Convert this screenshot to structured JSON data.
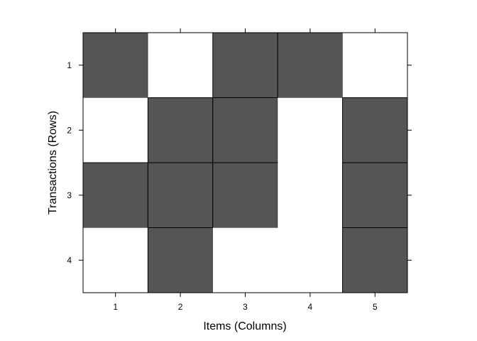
{
  "chart_data": {
    "type": "heatmap",
    "xlabel": "Items (Columns)",
    "ylabel": "Transactions (Rows)",
    "columns": [
      "1",
      "2",
      "3",
      "4",
      "5"
    ],
    "rows": [
      "1",
      "2",
      "3",
      "4"
    ],
    "matrix": [
      [
        1,
        0,
        1,
        1,
        0
      ],
      [
        0,
        1,
        1,
        0,
        1
      ],
      [
        1,
        1,
        1,
        0,
        1
      ],
      [
        0,
        1,
        0,
        0,
        1
      ]
    ],
    "colors": {
      "filled": "#555555",
      "empty": "#ffffff",
      "border": "#000000"
    }
  }
}
